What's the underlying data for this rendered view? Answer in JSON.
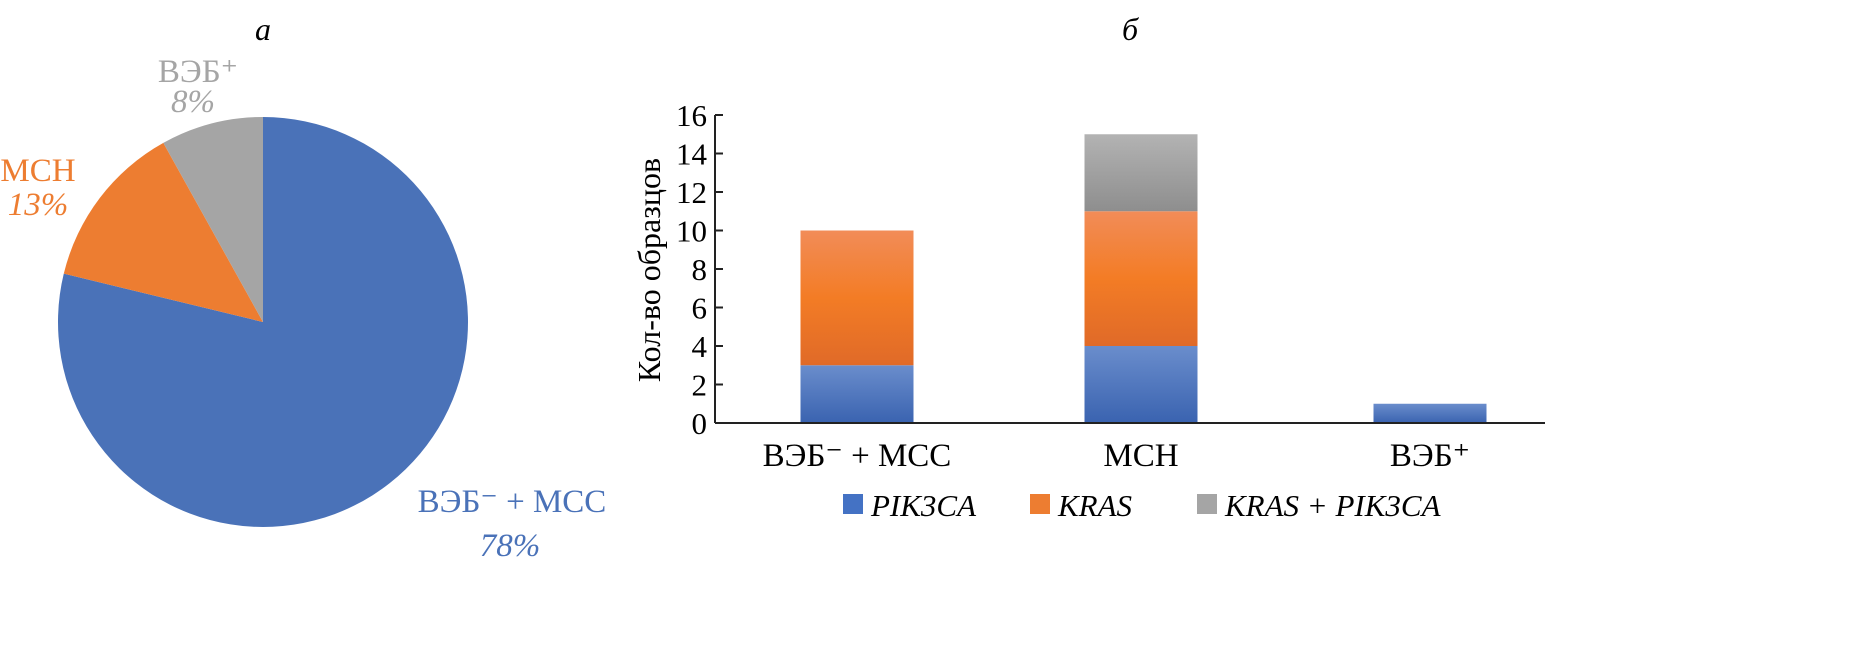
{
  "chart_data": [
    {
      "type": "pie",
      "panel_label": "а",
      "slices": [
        {
          "label": "ВЭБ⁻ + МСС",
          "value": 78,
          "value_label": "78%",
          "color": "#4a72b8"
        },
        {
          "label": "МСН",
          "value": 13,
          "value_label": "13%",
          "color": "#ed7d31"
        },
        {
          "label": "ВЭБ⁺",
          "value": 8,
          "value_label": "8%",
          "color": "#a5a5a5"
        }
      ]
    },
    {
      "type": "bar",
      "stacked": true,
      "panel_label": "б",
      "ylabel": "Кол-во образцов",
      "xlabel": "",
      "ylim": [
        0,
        16
      ],
      "yticks": [
        "0",
        "2",
        "4",
        "6",
        "8",
        "10",
        "12",
        "14",
        "16"
      ],
      "categories": [
        "ВЭБ⁻ + МСС",
        "МСН",
        "ВЭБ⁺"
      ],
      "series": [
        {
          "name": "PIK3CA",
          "values": [
            3,
            4,
            1
          ],
          "color": "#4472c4"
        },
        {
          "name": "KRAS",
          "values": [
            7,
            7,
            0
          ],
          "color": "#ed7d31"
        },
        {
          "name": "KRAS + PIK3CA",
          "values": [
            0,
            4,
            0
          ],
          "color": "#a5a5a5"
        }
      ],
      "legend_position": "bottom"
    }
  ]
}
